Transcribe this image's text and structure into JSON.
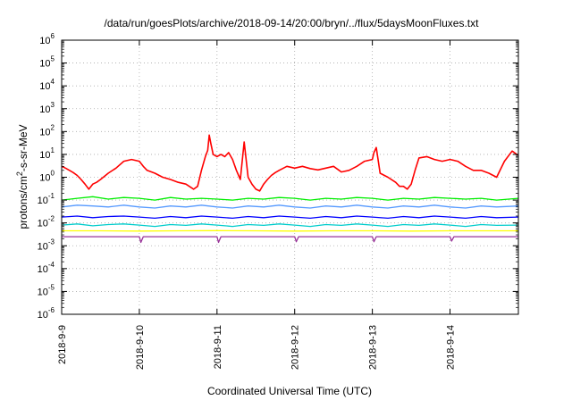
{
  "chart_data": {
    "type": "line",
    "title": "/data/run/goesPlots/archive/2018-09-14/20:00/bryn/../flux/5daysMoonFluxes.txt",
    "xlabel": "Coordinated Universal Time (UTC)",
    "ylabel_parts": {
      "prefix": "protons/cm",
      "sup": "2",
      "suffix": "-s-sr-MeV"
    },
    "yscale": "log",
    "ylim": [
      1e-06,
      1000000.0
    ],
    "xlim_days": [
      0,
      5.88
    ],
    "grid": true,
    "x_tick_labels": [
      "2018-9-9",
      "2018-9-10",
      "2018-9-11",
      "2018-9-12",
      "2018-9-13",
      "2018-9-14"
    ],
    "x_tick_days": [
      0,
      1,
      2,
      3,
      4,
      5
    ],
    "y_ticks": [
      {
        "base": "10",
        "exp": "-6",
        "value": 1e-06
      },
      {
        "base": "10",
        "exp": "-5",
        "value": 1e-05
      },
      {
        "base": "10",
        "exp": "-4",
        "value": 0.0001
      },
      {
        "base": "10",
        "exp": "-3",
        "value": 0.001
      },
      {
        "base": "10",
        "exp": "-2",
        "value": 0.01
      },
      {
        "base": "10",
        "exp": "-1",
        "value": 0.1
      },
      {
        "base": "10",
        "exp": "0",
        "value": 1
      },
      {
        "base": "10",
        "exp": "1",
        "value": 10
      },
      {
        "base": "10",
        "exp": "2",
        "value": 100
      },
      {
        "base": "10",
        "exp": "3",
        "value": 1000
      },
      {
        "base": "10",
        "exp": "4",
        "value": 10000
      },
      {
        "base": "10",
        "exp": "5",
        "value": 100000
      },
      {
        "base": "10",
        "exp": "6",
        "value": 1000000
      }
    ],
    "series": [
      {
        "color": "#ff0000",
        "x": [
          0,
          0.05,
          0.1,
          0.15,
          0.2,
          0.25,
          0.3,
          0.35,
          0.4,
          0.45,
          0.5,
          0.6,
          0.7,
          0.8,
          0.9,
          1.0,
          1.05,
          1.1,
          1.2,
          1.3,
          1.4,
          1.5,
          1.6,
          1.7,
          1.75,
          1.8,
          1.85,
          1.88,
          1.9,
          1.92,
          1.95,
          2.0,
          2.05,
          2.1,
          2.15,
          2.2,
          2.25,
          2.3,
          2.35,
          2.4,
          2.45,
          2.5,
          2.55,
          2.6,
          2.65,
          2.7,
          2.75,
          2.8,
          2.9,
          3.0,
          3.1,
          3.2,
          3.3,
          3.4,
          3.5,
          3.6,
          3.7,
          3.8,
          3.9,
          4.0,
          4.02,
          4.05,
          4.1,
          4.2,
          4.3,
          4.35,
          4.4,
          4.45,
          4.5,
          4.55,
          4.6,
          4.7,
          4.8,
          4.9,
          5.0,
          5.1,
          5.2,
          5.3,
          5.4,
          5.5,
          5.6,
          5.7,
          5.8,
          5.88
        ],
        "y": [
          3,
          2.5,
          2,
          1.6,
          1.2,
          0.8,
          0.5,
          0.3,
          0.5,
          0.6,
          0.8,
          1.5,
          2.5,
          5,
          6,
          5,
          3,
          2,
          1.5,
          1,
          0.8,
          0.6,
          0.5,
          0.3,
          0.4,
          2,
          8,
          15,
          70,
          30,
          10,
          8,
          10,
          8,
          12,
          6,
          2,
          0.8,
          35,
          1,
          0.5,
          0.3,
          0.25,
          0.5,
          0.8,
          1.2,
          1.6,
          2,
          3,
          2.5,
          3,
          2.4,
          2.1,
          2.5,
          3,
          1.7,
          2,
          3,
          5,
          6,
          12,
          20,
          1.5,
          1,
          0.6,
          0.4,
          0.4,
          0.3,
          0.5,
          2,
          7,
          8,
          6,
          5,
          6,
          5,
          3,
          2,
          2,
          1.5,
          1,
          5,
          14,
          9
        ]
      },
      {
        "color": "#00ee00",
        "x": [
          0,
          0.2,
          0.4,
          0.6,
          0.8,
          1.0,
          1.2,
          1.4,
          1.6,
          1.8,
          2.0,
          2.2,
          2.4,
          2.6,
          2.8,
          3.0,
          3.2,
          3.4,
          3.6,
          3.8,
          4.0,
          4.2,
          4.4,
          4.6,
          4.8,
          5.0,
          5.2,
          5.4,
          5.6,
          5.88
        ],
        "y": [
          0.1,
          0.12,
          0.14,
          0.11,
          0.13,
          0.12,
          0.1,
          0.13,
          0.11,
          0.12,
          0.11,
          0.1,
          0.12,
          0.11,
          0.13,
          0.12,
          0.1,
          0.12,
          0.11,
          0.13,
          0.12,
          0.1,
          0.12,
          0.11,
          0.13,
          0.12,
          0.11,
          0.12,
          0.1,
          0.12
        ]
      },
      {
        "color": "#5599ff",
        "x": [
          0,
          0.2,
          0.4,
          0.6,
          0.8,
          1.0,
          1.2,
          1.4,
          1.6,
          1.8,
          2.0,
          2.2,
          2.4,
          2.6,
          2.8,
          3.0,
          3.2,
          3.4,
          3.6,
          3.8,
          4.0,
          4.2,
          4.4,
          4.6,
          4.8,
          5.0,
          5.2,
          5.4,
          5.6,
          5.88
        ],
        "y": [
          0.05,
          0.06,
          0.055,
          0.05,
          0.06,
          0.05,
          0.045,
          0.055,
          0.05,
          0.06,
          0.05,
          0.045,
          0.055,
          0.05,
          0.06,
          0.05,
          0.045,
          0.055,
          0.05,
          0.06,
          0.05,
          0.045,
          0.055,
          0.05,
          0.06,
          0.05,
          0.045,
          0.055,
          0.05,
          0.055
        ]
      },
      {
        "color": "#0000ff",
        "x": [
          0,
          0.2,
          0.4,
          0.6,
          0.8,
          1.0,
          1.2,
          1.4,
          1.6,
          1.8,
          2.0,
          2.2,
          2.4,
          2.6,
          2.8,
          3.0,
          3.2,
          3.4,
          3.6,
          3.8,
          4.0,
          4.2,
          4.4,
          4.6,
          4.8,
          5.0,
          5.2,
          5.4,
          5.6,
          5.88
        ],
        "y": [
          0.018,
          0.02,
          0.017,
          0.019,
          0.02,
          0.018,
          0.016,
          0.019,
          0.017,
          0.02,
          0.018,
          0.016,
          0.019,
          0.017,
          0.02,
          0.018,
          0.016,
          0.019,
          0.017,
          0.02,
          0.018,
          0.016,
          0.019,
          0.017,
          0.02,
          0.018,
          0.016,
          0.019,
          0.017,
          0.018
        ]
      },
      {
        "color": "#00cccc",
        "x": [
          0,
          0.2,
          0.4,
          0.6,
          0.8,
          1.0,
          1.2,
          1.4,
          1.6,
          1.8,
          2.0,
          2.2,
          2.4,
          2.6,
          2.8,
          3.0,
          3.2,
          3.4,
          3.6,
          3.8,
          4.0,
          4.2,
          4.4,
          4.6,
          4.8,
          5.0,
          5.2,
          5.4,
          5.6,
          5.88
        ],
        "y": [
          0.008,
          0.009,
          0.0075,
          0.0085,
          0.009,
          0.008,
          0.007,
          0.0085,
          0.0078,
          0.009,
          0.008,
          0.007,
          0.0085,
          0.0078,
          0.009,
          0.008,
          0.007,
          0.0085,
          0.0078,
          0.009,
          0.008,
          0.007,
          0.0085,
          0.0078,
          0.009,
          0.008,
          0.007,
          0.0085,
          0.0078,
          0.008
        ]
      },
      {
        "color": "#ffff00",
        "x": [
          0,
          0.5,
          1.0,
          1.5,
          2.0,
          2.5,
          3.0,
          3.5,
          4.0,
          4.5,
          5.0,
          5.5,
          5.88
        ],
        "y": [
          0.0045,
          0.0045,
          0.0044,
          0.0045,
          0.0046,
          0.0045,
          0.0044,
          0.0045,
          0.0045,
          0.0044,
          0.0045,
          0.0045,
          0.0045
        ]
      },
      {
        "color": "#993399",
        "x": [
          0,
          0.3,
          0.6,
          0.9,
          1.0,
          1.02,
          1.05,
          1.3,
          1.6,
          1.9,
          2.0,
          2.02,
          2.05,
          2.3,
          2.6,
          2.9,
          3.0,
          3.02,
          3.05,
          3.3,
          3.6,
          3.9,
          4.0,
          4.02,
          4.05,
          4.3,
          4.6,
          4.9,
          5.0,
          5.02,
          5.05,
          5.3,
          5.6,
          5.88
        ],
        "y": [
          0.0025,
          0.0025,
          0.0025,
          0.0025,
          0.0025,
          0.0014,
          0.0025,
          0.0025,
          0.0025,
          0.0025,
          0.0025,
          0.0014,
          0.0025,
          0.0025,
          0.0025,
          0.0025,
          0.0025,
          0.0015,
          0.0025,
          0.0025,
          0.0025,
          0.0025,
          0.0025,
          0.0015,
          0.0025,
          0.0025,
          0.0025,
          0.0025,
          0.0025,
          0.0016,
          0.0025,
          0.0025,
          0.0025,
          0.0025
        ]
      }
    ]
  }
}
